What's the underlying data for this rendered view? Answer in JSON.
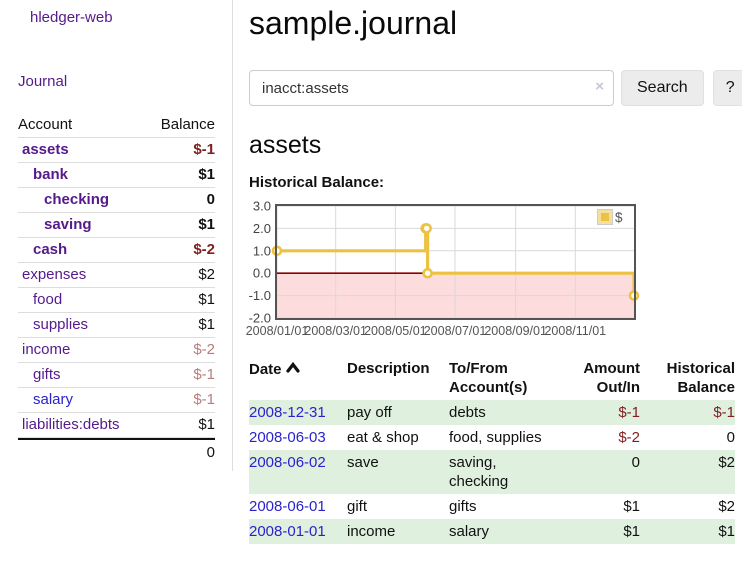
{
  "brand": "hledger-web",
  "sidebar": {
    "nav": {
      "journal_label": "Journal"
    },
    "accounts_table": {
      "headers": {
        "account": "Account",
        "balance": "Balance"
      },
      "rows": [
        {
          "account": "assets",
          "depth": 1,
          "bold": true,
          "balance": "$-1",
          "negative": "strong"
        },
        {
          "account": "bank",
          "depth": 2,
          "bold": true,
          "balance": "$1"
        },
        {
          "account": "checking",
          "depth": 3,
          "bold": true,
          "balance": "0"
        },
        {
          "account": "saving",
          "depth": 3,
          "bold": true,
          "balance": "$1"
        },
        {
          "account": "cash",
          "depth": 2,
          "bold": true,
          "balance": "$-2",
          "negative": "strong"
        },
        {
          "account": "expenses",
          "depth": 1,
          "bold": false,
          "balance": "$2"
        },
        {
          "account": "food",
          "depth": 2,
          "bold": false,
          "balance": "$1"
        },
        {
          "account": "supplies",
          "depth": 2,
          "bold": false,
          "balance": "$1"
        },
        {
          "account": "income",
          "depth": 1,
          "bold": false,
          "balance": "$-2",
          "negative": "soft"
        },
        {
          "account": "gifts",
          "depth": 2,
          "bold": false,
          "balance": "$-1",
          "negative": "soft"
        },
        {
          "account": "salary",
          "depth": 2,
          "bold": false,
          "balance": "$-1",
          "negative": "soft",
          "link_style": "blue"
        },
        {
          "account": "liabilities:debts",
          "depth": 1,
          "bold": false,
          "balance": "$1"
        }
      ],
      "total": "0"
    }
  },
  "header": {
    "title": "sample.journal"
  },
  "search": {
    "value": "inacct:assets",
    "clear_icon": "×",
    "button_label": "Search",
    "help_label": "?"
  },
  "account_page": {
    "heading": "assets",
    "chart_label": "Historical Balance:"
  },
  "chart_data": {
    "type": "line",
    "title": "Historical Balance",
    "series": [
      {
        "name": "$",
        "color": "#EDC240",
        "steps": true,
        "points": [
          [
            "2008-01-01",
            1
          ],
          [
            "2008-06-01",
            2
          ],
          [
            "2008-06-02",
            2
          ],
          [
            "2008-06-03",
            0
          ],
          [
            "2008-12-31",
            -1
          ]
        ]
      }
    ],
    "x_ticks": [
      "2008/01/01",
      "2008/03/01",
      "2008/05/01",
      "2008/07/01",
      "2008/09/01",
      "2008/11/01"
    ],
    "y_ticks": [
      "3.0",
      "2.0",
      "1.0",
      "0.0",
      "-1.0",
      "-2.0"
    ],
    "ylim": [
      -2,
      3
    ],
    "x_range_days": 365,
    "grid": true,
    "negative_region_fill": "#fcdcdc",
    "zero_line_color": "#8b0000",
    "grid_color": "#d9d9d9",
    "frame_color": "#545454",
    "axis_text_color": "#545454",
    "legend": {
      "label": "$",
      "position": "top-right"
    }
  },
  "register_table": {
    "headers": {
      "date": "Date",
      "description": "Description",
      "accounts": "To/From Account(s)",
      "amount": "Amount Out/In",
      "balance": "Historical Balance"
    },
    "rows": [
      {
        "date": "2008-12-31",
        "description": "pay off",
        "accounts": "debts",
        "amount": "$-1",
        "balance": "$-1"
      },
      {
        "date": "2008-06-03",
        "description": "eat & shop",
        "accounts": "food, supplies",
        "amount": "$-2",
        "balance": "0"
      },
      {
        "date": "2008-06-02",
        "description": "save",
        "accounts": "saving, checking",
        "amount": "0",
        "balance": "$2"
      },
      {
        "date": "2008-06-01",
        "description": "gift",
        "accounts": "gifts",
        "amount": "$1",
        "balance": "$2"
      },
      {
        "date": "2008-01-01",
        "description": "income",
        "accounts": "salary",
        "amount": "$1",
        "balance": "$1"
      }
    ]
  }
}
